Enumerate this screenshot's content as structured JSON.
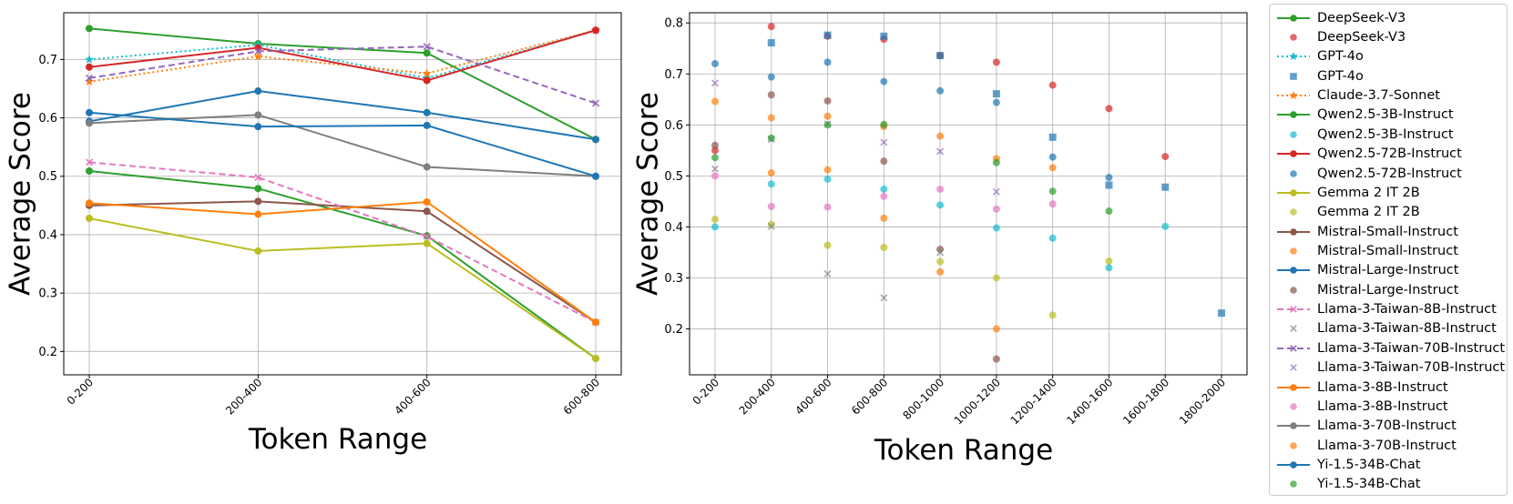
{
  "chart_data": [
    {
      "type": "line",
      "title": "",
      "xlabel": "Token Range",
      "ylabel": "Average Score",
      "categories": [
        "0-200",
        "200-400",
        "400-600",
        "600-800"
      ],
      "ylim": [
        0.16,
        0.78
      ],
      "yticks": [
        "0.2",
        "0.3",
        "0.4",
        "0.5",
        "0.6",
        "0.7"
      ],
      "grid": true,
      "series": [
        {
          "name": "DeepSeek-V3",
          "color": "#2ca02c",
          "style": "solid",
          "marker": "circle",
          "values": [
            0.753,
            0.727,
            0.711,
            0.563
          ]
        },
        {
          "name": "GPT-4o",
          "color": "#17becf",
          "style": "dotted",
          "marker": "star",
          "values": [
            0.7,
            0.725,
            0.668,
            0.75
          ]
        },
        {
          "name": "Claude-3.7-Sonnet",
          "color": "#ff7f0e",
          "style": "dotted",
          "marker": "star",
          "values": [
            0.662,
            0.705,
            0.676,
            0.75
          ]
        },
        {
          "name": "Qwen2.5-3B-Instruct",
          "color": "#2ca02c",
          "style": "solid",
          "marker": "circle",
          "values": [
            0.509,
            0.479,
            0.398,
            0.188
          ]
        },
        {
          "name": "Qwen2.5-72B-Instruct",
          "color": "#d62728",
          "style": "solid",
          "marker": "circle",
          "values": [
            0.687,
            0.72,
            0.664,
            0.75
          ]
        },
        {
          "name": "Gemma 2 IT 2B",
          "color": "#bcbd22",
          "style": "solid",
          "marker": "circle",
          "values": [
            0.428,
            0.372,
            0.385,
            0.188
          ]
        },
        {
          "name": "Mistral-Small-Instruct",
          "color": "#8c564b",
          "style": "solid",
          "marker": "circle",
          "values": [
            0.45,
            0.457,
            0.44,
            0.25
          ]
        },
        {
          "name": "Mistral-Large-Instruct",
          "color": "#1f77b4",
          "style": "solid",
          "marker": "circle",
          "values": [
            0.594,
            0.646,
            0.609,
            0.563
          ]
        },
        {
          "name": "Llama-3-Taiwan-8B-Instruct",
          "color": "#e377c2",
          "style": "dashed",
          "marker": "x",
          "values": [
            0.524,
            0.498,
            0.397,
            0.25
          ]
        },
        {
          "name": "Llama-3-Taiwan-70B-Instruct",
          "color": "#9467bd",
          "style": "dashed",
          "marker": "x",
          "values": [
            0.668,
            0.714,
            0.722,
            0.625
          ]
        },
        {
          "name": "Llama-3-8B-Instruct",
          "color": "#ff7f0e",
          "style": "solid",
          "marker": "circle",
          "values": [
            0.454,
            0.435,
            0.456,
            0.25
          ]
        },
        {
          "name": "Llama-3-70B-Instruct",
          "color": "#7f7f7f",
          "style": "solid",
          "marker": "circle",
          "values": [
            0.591,
            0.605,
            0.516,
            0.5
          ]
        },
        {
          "name": "Yi-1.5-34B-Chat",
          "color": "#1f77b4",
          "style": "solid",
          "marker": "circle",
          "values": [
            0.609,
            0.585,
            0.587,
            0.5
          ]
        }
      ]
    },
    {
      "type": "scatter",
      "title": "",
      "xlabel": "Token Range",
      "ylabel": "Average Score",
      "categories": [
        "0-200",
        "200-400",
        "400-600",
        "600-800",
        "800-1000",
        "1000-1200",
        "1200-1400",
        "1400-1600",
        "1600-1800",
        "1800-2000"
      ],
      "ylim": [
        0.11,
        0.82
      ],
      "yticks": [
        "0.2",
        "0.3",
        "0.4",
        "0.5",
        "0.6",
        "0.7",
        "0.8"
      ],
      "grid": true,
      "series": [
        {
          "name": "DeepSeek-V3",
          "color": "#d62728",
          "marker": "circle",
          "values": [
            0.55,
            0.793,
            0.774,
            0.768,
            0.736,
            0.723,
            0.678,
            0.632,
            0.538,
            null
          ]
        },
        {
          "name": "GPT-4o",
          "color": "#1f77b4",
          "marker": "square",
          "values": [
            null,
            0.761,
            0.776,
            0.774,
            0.736,
            0.661,
            0.576,
            0.482,
            0.478,
            0.231
          ]
        },
        {
          "name": "Qwen2.5-3B-Instruct",
          "color": "#17becf",
          "marker": "circle",
          "values": [
            0.4,
            0.484,
            0.494,
            0.474,
            0.443,
            0.398,
            0.378,
            0.32,
            0.401,
            null
          ]
        },
        {
          "name": "Qwen2.5-72B-Instruct",
          "color": "#1f77b4",
          "marker": "circle",
          "values": [
            0.72,
            0.694,
            0.723,
            0.685,
            0.667,
            0.644,
            0.537,
            0.497,
            null,
            null
          ]
        },
        {
          "name": "Gemma 2 IT 2B",
          "color": "#bcbd22",
          "marker": "circle",
          "values": [
            0.415,
            0.405,
            0.364,
            0.36,
            0.332,
            0.3,
            0.227,
            0.333,
            null,
            null
          ]
        },
        {
          "name": "Mistral-Small-Instruct",
          "color": "#ff7f0e",
          "marker": "circle",
          "values": [
            0.646,
            0.614,
            0.617,
            0.417,
            0.312,
            0.2,
            0.516,
            null,
            null,
            null
          ]
        },
        {
          "name": "Mistral-Large-Instruct",
          "color": "#8c564b",
          "marker": "circle",
          "values": [
            0.56,
            0.659,
            0.647,
            0.529,
            0.356,
            0.141,
            null,
            null,
            null,
            null
          ]
        },
        {
          "name": "Llama-3-Taiwan-8B-Instruct",
          "color": "#7f7f7f",
          "marker": "x",
          "values": [
            0.514,
            0.401,
            0.308,
            0.261,
            0.35,
            null,
            null,
            null,
            null,
            null
          ]
        },
        {
          "name": "Llama-3-Taiwan-70B-Instruct",
          "color": "#9467bd",
          "marker": "x",
          "values": [
            0.682,
            0.572,
            0.602,
            0.566,
            0.548,
            0.469,
            null,
            null,
            null,
            null
          ]
        },
        {
          "name": "Llama-3-8B-Instruct",
          "color": "#e377c2",
          "marker": "circle",
          "values": [
            0.5,
            0.44,
            0.439,
            0.46,
            0.474,
            0.435,
            0.445,
            null,
            null,
            null
          ]
        },
        {
          "name": "Llama-3-70B-Instruct",
          "color": "#ff7f0e",
          "marker": "circle",
          "values": [
            null,
            0.506,
            0.512,
            0.597,
            0.578,
            0.534,
            null,
            null,
            null,
            null
          ]
        },
        {
          "name": "Yi-1.5-34B-Chat",
          "color": "#2ca02c",
          "marker": "circle",
          "values": [
            0.536,
            0.574,
            0.6,
            0.601,
            null,
            0.526,
            0.47,
            0.431,
            null,
            null
          ]
        }
      ]
    }
  ],
  "legend": [
    {
      "label": "DeepSeek-V3",
      "color": "#2ca02c",
      "kind": "line",
      "style": "solid",
      "marker": "circle"
    },
    {
      "label": "DeepSeek-V3",
      "color": "#d62728",
      "kind": "point",
      "marker": "circle"
    },
    {
      "label": "GPT-4o",
      "color": "#17becf",
      "kind": "line",
      "style": "dotted",
      "marker": "star"
    },
    {
      "label": "GPT-4o",
      "color": "#1f77b4",
      "kind": "point",
      "marker": "square"
    },
    {
      "label": "Claude-3.7-Sonnet",
      "color": "#ff7f0e",
      "kind": "line",
      "style": "dotted",
      "marker": "star"
    },
    {
      "label": "Qwen2.5-3B-Instruct",
      "color": "#2ca02c",
      "kind": "line",
      "style": "solid",
      "marker": "circle"
    },
    {
      "label": "Qwen2.5-3B-Instruct",
      "color": "#17becf",
      "kind": "point",
      "marker": "circle"
    },
    {
      "label": "Qwen2.5-72B-Instruct",
      "color": "#d62728",
      "kind": "line",
      "style": "solid",
      "marker": "circle"
    },
    {
      "label": "Qwen2.5-72B-Instruct",
      "color": "#1f77b4",
      "kind": "point",
      "marker": "circle"
    },
    {
      "label": "Gemma 2 IT 2B",
      "color": "#bcbd22",
      "kind": "line",
      "style": "solid",
      "marker": "circle"
    },
    {
      "label": "Gemma 2 IT 2B",
      "color": "#bcbd22",
      "kind": "point",
      "marker": "circle"
    },
    {
      "label": "Mistral-Small-Instruct",
      "color": "#8c564b",
      "kind": "line",
      "style": "solid",
      "marker": "circle"
    },
    {
      "label": "Mistral-Small-Instruct",
      "color": "#ff7f0e",
      "kind": "point",
      "marker": "circle"
    },
    {
      "label": "Mistral-Large-Instruct",
      "color": "#1f77b4",
      "kind": "line",
      "style": "solid",
      "marker": "circle"
    },
    {
      "label": "Mistral-Large-Instruct",
      "color": "#8c564b",
      "kind": "point",
      "marker": "circle"
    },
    {
      "label": "Llama-3-Taiwan-8B-Instruct",
      "color": "#e377c2",
      "kind": "line",
      "style": "dashed",
      "marker": "x"
    },
    {
      "label": "Llama-3-Taiwan-8B-Instruct",
      "color": "#7f7f7f",
      "kind": "point",
      "marker": "x"
    },
    {
      "label": "Llama-3-Taiwan-70B-Instruct",
      "color": "#9467bd",
      "kind": "line",
      "style": "dashed",
      "marker": "x"
    },
    {
      "label": "Llama-3-Taiwan-70B-Instruct",
      "color": "#9467bd",
      "kind": "point",
      "marker": "x"
    },
    {
      "label": "Llama-3-8B-Instruct",
      "color": "#ff7f0e",
      "kind": "line",
      "style": "solid",
      "marker": "circle"
    },
    {
      "label": "Llama-3-8B-Instruct",
      "color": "#e377c2",
      "kind": "point",
      "marker": "circle"
    },
    {
      "label": "Llama-3-70B-Instruct",
      "color": "#7f7f7f",
      "kind": "line",
      "style": "solid",
      "marker": "circle"
    },
    {
      "label": "Llama-3-70B-Instruct",
      "color": "#ff7f0e",
      "kind": "point",
      "marker": "circle"
    },
    {
      "label": "Yi-1.5-34B-Chat",
      "color": "#1f77b4",
      "kind": "line",
      "style": "solid",
      "marker": "circle"
    },
    {
      "label": "Yi-1.5-34B-Chat",
      "color": "#2ca02c",
      "kind": "point",
      "marker": "circle"
    }
  ]
}
